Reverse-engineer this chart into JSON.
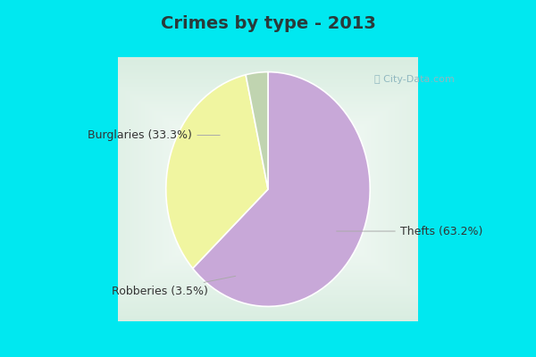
{
  "title": "Crimes by type - 2013",
  "slices": [
    {
      "label": "Thefts (63.2%)",
      "value": 63.2,
      "color": "#c8a8d8"
    },
    {
      "label": "Burglaries (33.3%)",
      "value": 33.3,
      "color": "#f0f5a0"
    },
    {
      "label": "Robberies (3.5%)",
      "value": 3.5,
      "color": "#c0d4b0"
    }
  ],
  "bg_cyan": "#00e8f0",
  "bg_main": "#d8ede0",
  "title_fontsize": 14,
  "label_fontsize": 9,
  "startangle": 90,
  "watermark": "ⓘ City-Data.com",
  "title_color": "#2a3a3a",
  "label_color": "#333333",
  "watermark_color": "#90b8c0"
}
